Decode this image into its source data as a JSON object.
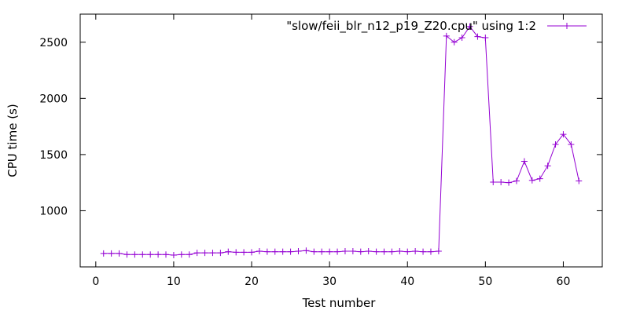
{
  "chart_data": {
    "type": "line",
    "xlabel": "Test number",
    "ylabel": "CPU time (s)",
    "xlim": [
      -2,
      65
    ],
    "ylim": [
      500,
      2750
    ],
    "xticks": [
      0,
      10,
      20,
      30,
      40,
      50,
      60
    ],
    "yticks": [
      1000,
      1500,
      2000,
      2500
    ],
    "grid": false,
    "legend_position": "top-right",
    "series": [
      {
        "name": "\"slow/feii_blr_n12_p19_Z20.cpu\" using 1:2",
        "color": "#9400d3",
        "marker": "plus",
        "x": [
          1,
          2,
          3,
          4,
          5,
          6,
          7,
          8,
          9,
          10,
          11,
          12,
          13,
          14,
          15,
          16,
          17,
          18,
          19,
          20,
          21,
          22,
          23,
          24,
          25,
          26,
          27,
          28,
          29,
          30,
          31,
          32,
          33,
          34,
          35,
          36,
          37,
          38,
          39,
          40,
          41,
          42,
          43,
          44,
          45,
          46,
          47,
          48,
          49,
          50,
          51,
          52,
          53,
          54,
          55,
          56,
          57,
          58,
          59,
          60,
          61,
          62
        ],
        "y": [
          620,
          620,
          620,
          610,
          610,
          610,
          610,
          610,
          610,
          605,
          610,
          610,
          625,
          625,
          625,
          625,
          635,
          630,
          630,
          630,
          640,
          635,
          635,
          635,
          635,
          640,
          645,
          635,
          635,
          635,
          635,
          640,
          640,
          635,
          640,
          635,
          635,
          635,
          640,
          635,
          640,
          635,
          635,
          640,
          2555,
          2500,
          2540,
          2640,
          2550,
          2540,
          1255,
          1255,
          1250,
          1265,
          1440,
          1270,
          1285,
          1400,
          1590,
          1680,
          1590,
          1265
        ]
      }
    ]
  }
}
